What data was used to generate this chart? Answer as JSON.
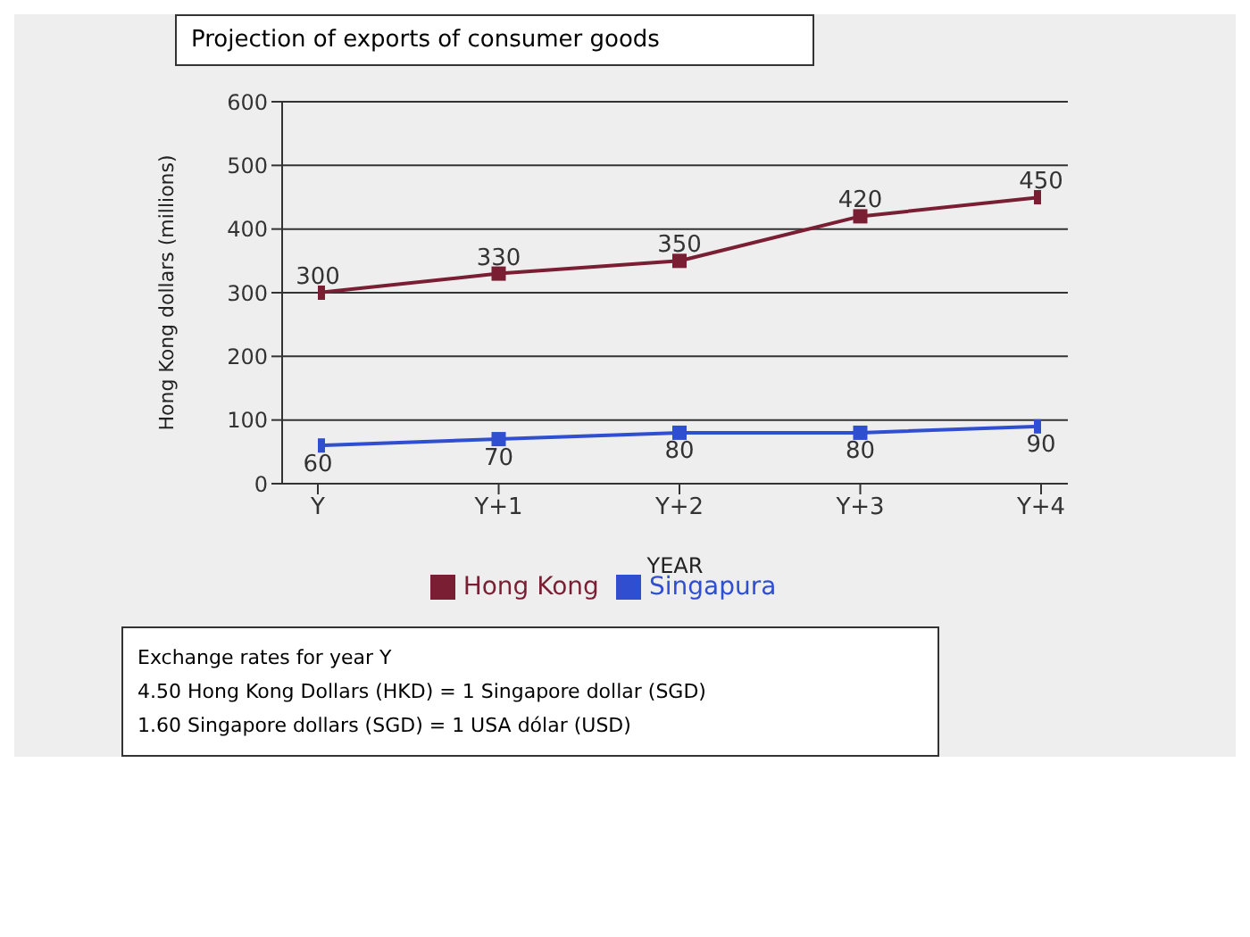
{
  "chart_data": {
    "type": "line",
    "title": "Projection of exports of consumer goods",
    "xlabel": "YEAR",
    "ylabel": "Hong Kong dollars (millions)",
    "categories": [
      "Y",
      "Y+1",
      "Y+2",
      "Y+3",
      "Y+4"
    ],
    "series": [
      {
        "name": "Hong Kong",
        "color": "#7a1f33",
        "values": [
          300,
          330,
          350,
          420,
          450
        ]
      },
      {
        "name": "Singapura",
        "color": "#2f4fd0",
        "values": [
          60,
          70,
          80,
          80,
          90
        ]
      }
    ],
    "ylim": [
      0,
      600
    ],
    "yticks": [
      0,
      100,
      200,
      300,
      400,
      500,
      600
    ],
    "grid": "y",
    "legend": "bottom",
    "marker": "square",
    "data_labels": true,
    "annotations": [
      "Exchange rates for year Y",
      "4.50 Hong Kong Dollars (HKD) = 1 Singapore dollar (SGD)",
      "1.60 Singapore dollars (SGD) = 1 USA dólar (USD)"
    ]
  }
}
